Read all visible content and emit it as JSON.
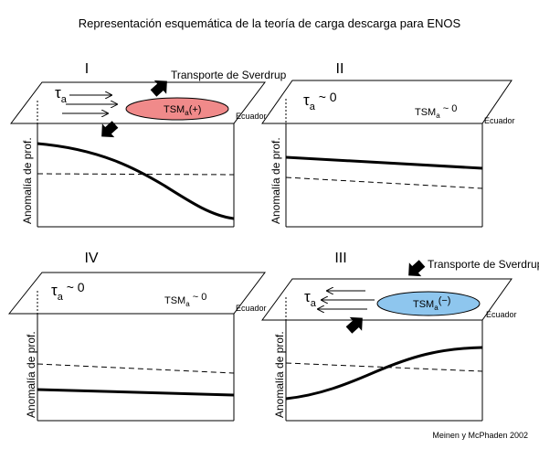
{
  "title": "Representación esquemática de la teoría de carga descarga para ENOS",
  "credit": "Meinen y McPhaden 2002",
  "panels": {
    "p1": {
      "roman": "I",
      "tau_base": "τ",
      "tau_sub": "a",
      "tsm_base": "TSM",
      "tsm_sub": "a",
      "tsm_sign": "(+)",
      "equator": "Ecuador",
      "yaxis": "Anomalía de prof.",
      "transport": "Transporte de Sverdrup",
      "ellipse_color": "#f08a8a"
    },
    "p2": {
      "roman": "II",
      "tau_base": "τ",
      "tau_sub": "a",
      "tau_tail": " ~ 0",
      "tsm_base": "TSM",
      "tsm_sub": "a",
      "tsm_tail": " ~ 0",
      "equator": "Ecuador",
      "yaxis": "Anomalía de prof."
    },
    "p3": {
      "roman": "III",
      "tau_base": "τ",
      "tau_sub": "a",
      "tsm_base": "TSM",
      "tsm_sub": "a",
      "tsm_sign": "(−)",
      "equator": "Ecuador",
      "yaxis": "Anomalía de prof.",
      "transport": "Transporte de Sverdrup",
      "ellipse_color": "#8ec6ee"
    },
    "p4": {
      "roman": "IV",
      "tau_base": "τ",
      "tau_sub": "a",
      "tau_tail": " ~ 0",
      "tsm_base": "TSM",
      "tsm_sub": "a",
      "tsm_tail": " ~ 0",
      "equator": "Ecuador",
      "yaxis": "Anomalía de prof."
    }
  }
}
